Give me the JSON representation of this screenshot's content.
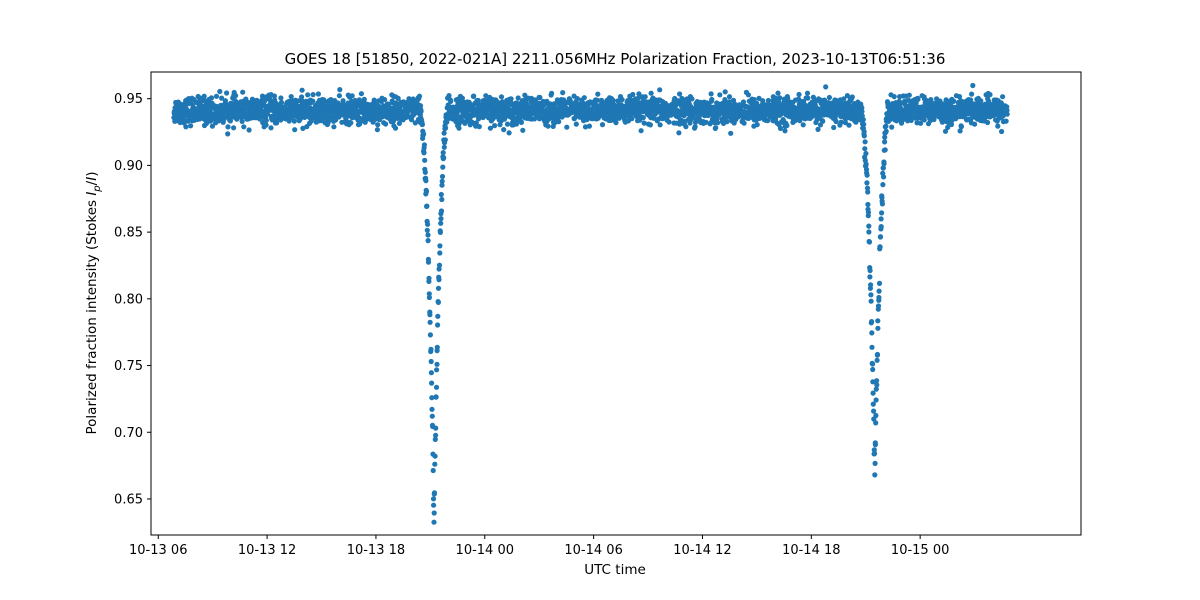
{
  "chart_data": {
    "type": "scatter",
    "title": "GOES 18 [51850, 2022-021A] 2211.056MHz Polarization Fraction, 2023-10-13T06:51:36",
    "xlabel": "UTC time",
    "ylabel_main": "Polarized fraction intensity (Stokes ",
    "ylabel_I": "I",
    "ylabel_sub": "p",
    "ylabel_tail": "/",
    "ylabel_I2": "I",
    "ylabel_close": ")",
    "x_start": "2023-10-13 05:36",
    "x_end": "2023-10-15 08:52",
    "ylim": [
      0.623,
      0.97
    ],
    "xticks": [
      {
        "label": "10-13 06",
        "time": "2023-10-13 06:00"
      },
      {
        "label": "10-13 12",
        "time": "2023-10-13 12:00"
      },
      {
        "label": "10-13 18",
        "time": "2023-10-13 18:00"
      },
      {
        "label": "10-14 00",
        "time": "2023-10-14 00:00"
      },
      {
        "label": "10-14 06",
        "time": "2023-10-14 06:00"
      },
      {
        "label": "10-14 12",
        "time": "2023-10-14 12:00"
      },
      {
        "label": "10-14 18",
        "time": "2023-10-14 18:00"
      },
      {
        "label": "10-15 00",
        "time": "2023-10-15 00:00"
      }
    ],
    "yticks": [
      0.65,
      0.7,
      0.75,
      0.8,
      0.85,
      0.9,
      0.95
    ],
    "ytick_labels": [
      "0.65",
      "0.70",
      "0.75",
      "0.80",
      "0.85",
      "0.90",
      "0.95"
    ],
    "grid": false,
    "legend": "none",
    "marker_color": "#1f77b4",
    "series": [
      {
        "data_start": "2023-10-13 06:51:36",
        "data_end": "2023-10-15 04:48:00",
        "baseline_level": 0.941,
        "baseline_spread": 0.005,
        "dips": [
          {
            "center": "2023-10-13 21:12",
            "min_value": 0.638
          },
          {
            "center": "2023-10-14 21:30",
            "min_value": 0.669
          }
        ]
      }
    ]
  }
}
